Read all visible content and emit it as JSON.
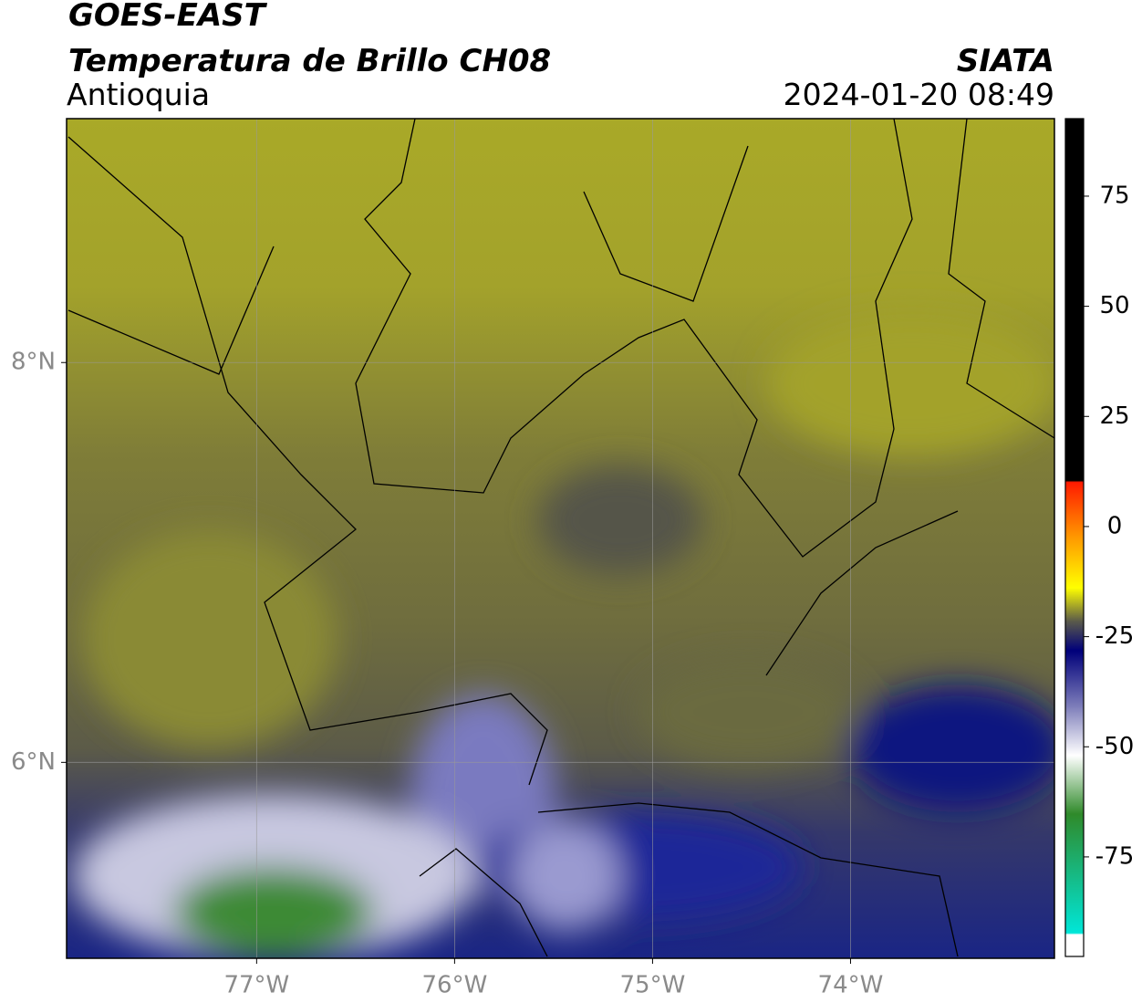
{
  "header": {
    "satellite": "GOES-EAST",
    "product": "Temperatura de Brillo CH08",
    "region": "Antioquia",
    "agency": "SIATA",
    "timestamp": "2024-01-20 08:49"
  },
  "map": {
    "xlim": [
      -77.96,
      -72.97
    ],
    "ylim": [
      5.02,
      9.22
    ],
    "xticks": [
      {
        "value": -77,
        "label": "77°W"
      },
      {
        "value": -76,
        "label": "76°W"
      },
      {
        "value": -75,
        "label": "75°W"
      },
      {
        "value": -74,
        "label": "74°W"
      }
    ],
    "yticks": [
      {
        "value": 8,
        "label": "8°N"
      },
      {
        "value": 6,
        "label": "6°N"
      }
    ]
  },
  "colorbar": {
    "lim": [
      -97.6,
      92.6
    ],
    "ticks": [
      75,
      50,
      25,
      0,
      -25,
      -50,
      -75
    ]
  }
}
